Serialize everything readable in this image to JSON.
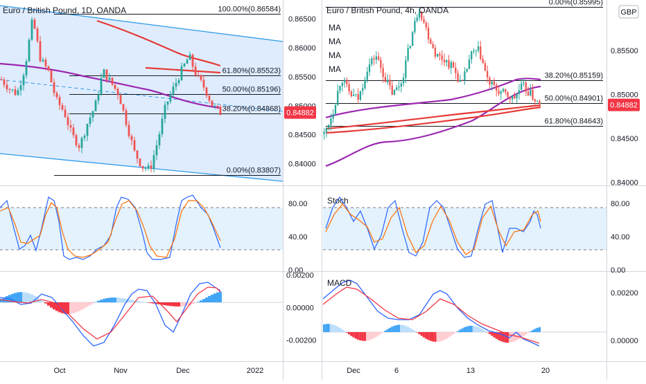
{
  "chart_data": [
    {
      "id": "left-price",
      "type": "candlestick",
      "title": "Euro / British Pound, 1D, OANDA",
      "y_ticks": [
        "0.86500",
        "0.86000",
        "0.85500",
        "0.85000",
        "0.84500",
        "0.84000"
      ],
      "ylim": [
        0.8365,
        0.8675
      ],
      "x_ticks": [
        "Oct",
        "Nov",
        "Dec",
        "2022"
      ],
      "last_price": "0.84882",
      "fib_levels": [
        {
          "label": "100.00%(0.86584)",
          "value": 0.86584
        },
        {
          "label": "61.80%(0.85523)",
          "value": 0.85523
        },
        {
          "label": "50.00%(0.85196)",
          "value": 0.85196
        },
        {
          "label": "38.20%(0.84868)",
          "value": 0.84868
        },
        {
          "label": "0.00%(0.83807)",
          "value": 0.83807
        }
      ]
    },
    {
      "id": "right-price",
      "type": "candlestick",
      "title": "Euro / British Pound, 4h, OANDA",
      "legend": [
        "MA",
        "MA",
        "MA",
        "MA"
      ],
      "currency": "GBP",
      "y_ticks": [
        "0.85500",
        "0.85000",
        "0.84500",
        "0.84000"
      ],
      "ylim": [
        0.8398,
        0.8603
      ],
      "x_ticks": [
        "Dec",
        "6",
        "13",
        "20"
      ],
      "last_price": "0.84882",
      "fib_levels": [
        {
          "label": "0.00%(0.85995)",
          "value": 0.85995
        },
        {
          "label": "38.20%(0.85159)",
          "value": 0.85159
        },
        {
          "label": "50.00%(0.84901)",
          "value": 0.84901
        },
        {
          "label": "61.80%(0.84643)",
          "value": 0.84643
        }
      ]
    },
    {
      "id": "left-stoch",
      "type": "line",
      "y_ticks": [
        "80.00",
        "40.00",
        "0.00"
      ],
      "ylim": [
        0,
        100
      ],
      "band": [
        20,
        80
      ]
    },
    {
      "id": "right-stoch",
      "type": "line",
      "label": "Stoch",
      "y_ticks": [
        "80.00",
        "40.00",
        "0.00"
      ],
      "ylim": [
        0,
        100
      ],
      "band": [
        20,
        80
      ]
    },
    {
      "id": "left-macd",
      "type": "bar",
      "y_ticks": [
        "0.00200",
        "0.00000",
        "-0.00200"
      ],
      "ylim": [
        -0.0032,
        0.0021
      ]
    },
    {
      "id": "right-macd",
      "type": "bar",
      "label": "MACD",
      "y_ticks": [
        "0.00200",
        "0.00000"
      ],
      "ylim": [
        -0.0008,
        0.0028
      ]
    }
  ]
}
